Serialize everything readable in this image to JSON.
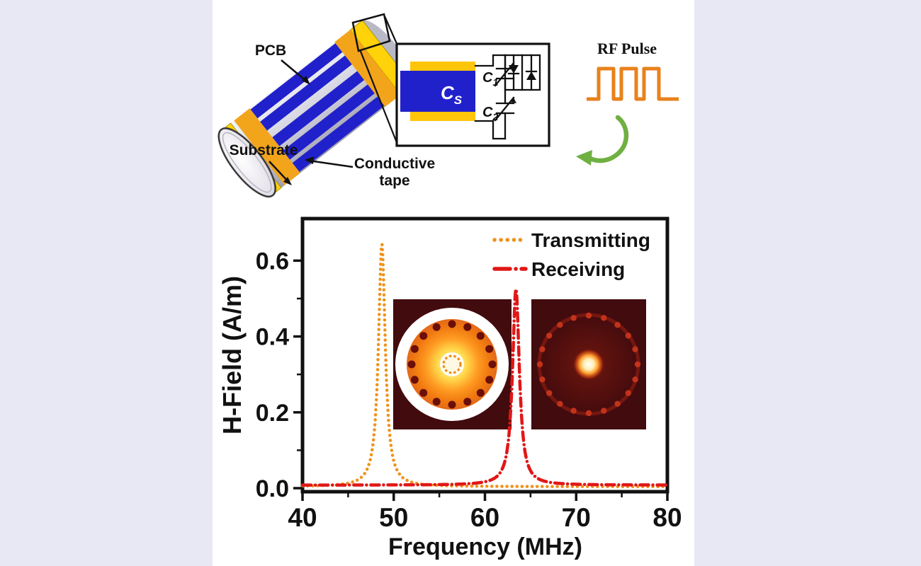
{
  "canvas": {
    "background_color": "#e8e8f4",
    "panel_color": "#ffffff"
  },
  "diagram": {
    "coil": {
      "pcb_label": "PCB",
      "substrate_label": "Substrate",
      "tape_label_line1": "Conductive",
      "tape_label_line2": "tape",
      "pcb_color": "#2121cc",
      "tape_color": "#f2a51b",
      "end_frame_color": "#ffd20a",
      "body_color": "#c9c9d6"
    },
    "circuit": {
      "shunt_cap_base": "C",
      "shunt_cap_sub": "S",
      "cap1_base": "C",
      "cap1_sub": "1",
      "cap2_base": "C",
      "cap2_sub": "2",
      "pcb_color": "#2121cc",
      "pad_color": "#ffc50a"
    },
    "rf_pulse": {
      "label": "RF Pulse",
      "wave_color": "#e8821c",
      "arrow_color": "#70b043"
    }
  },
  "chart_data": {
    "type": "line",
    "title": "",
    "xlabel": "Frequency (MHz)",
    "ylabel": "H-Field (A/m)",
    "xlim": [
      40,
      80
    ],
    "ylim": [
      0,
      0.68
    ],
    "xticks": [
      40,
      50,
      60,
      70,
      80
    ],
    "xticks_minor": [
      45,
      55,
      65,
      75
    ],
    "yticks": [
      0.0,
      0.2,
      0.4,
      0.6
    ],
    "yticks_minor": [
      0.1,
      0.3,
      0.5
    ],
    "grid": false,
    "legend_position": "top-right",
    "series": [
      {
        "name": "Transmitting",
        "color": "#ef921c",
        "line_style": "dotted",
        "peak_frequency_mhz": 48.7,
        "peak_amplitude": 0.64,
        "hwhm_mhz": 0.45,
        "baseline": 0.004
      },
      {
        "name": "Receiving",
        "color": "#e11717",
        "line_style": "dash-dot",
        "peak_frequency_mhz": 63.4,
        "peak_amplitude": 0.52,
        "hwhm_mhz": 0.45,
        "baseline": 0.008
      }
    ],
    "insets": [
      {
        "name": "transmitting-field-map"
      },
      {
        "name": "receiving-field-map"
      }
    ]
  }
}
